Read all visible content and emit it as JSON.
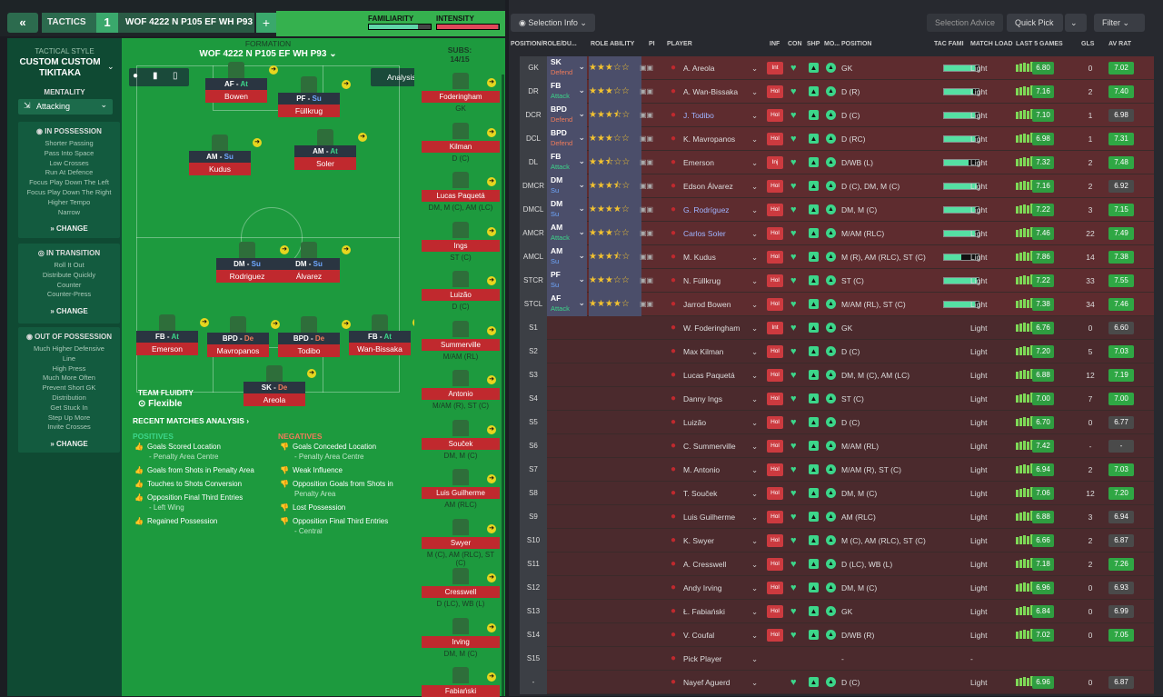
{
  "topbar": {
    "back_icon": "double-chevron-left",
    "tactics_label": "TACTICS",
    "tactic_number": "1",
    "tactic_name": "WOF 4222 N P105 EF WH P93",
    "add_label": "+",
    "familiarity_label": "FAMILIARITY",
    "intensity_label": "INTENSITY",
    "familiarity_level": 0.8,
    "intensity_level": 0.98
  },
  "sidebar": {
    "style_label": "TACTICAL STYLE",
    "style_name1": "CUSTOM CUSTOM",
    "style_name2": "TIKITAKA",
    "mentality_label": "MENTALITY",
    "mentality_value": "Attacking",
    "in_possession": {
      "title": "IN POSSESSION",
      "items": [
        "Shorter Passing",
        "Pass Into Space",
        "Low Crosses",
        "Run At Defence",
        "Focus Play Down The Left",
        "Focus Play Down The Right",
        "Higher Tempo",
        "Narrow"
      ],
      "change": "CHANGE"
    },
    "in_transition": {
      "title": "IN TRANSITION",
      "items": [
        "Roll It Out",
        "Distribute Quickly",
        "Counter",
        "Counter-Press"
      ],
      "change": "CHANGE"
    },
    "out_of_possession": {
      "title": "OUT OF POSSESSION",
      "items": [
        "Much Higher Defensive",
        "Line",
        "High Press",
        "Much More Often",
        "Prevent Short GK",
        "Distribution",
        "Get Stuck In",
        "Step Up More",
        "Invite Crosses"
      ],
      "change": "CHANGE"
    }
  },
  "pitch": {
    "formation_label": "FORMATION",
    "formation_name": "WOF 4222 N P105 EF WH P93",
    "analysis_label": "Analysis",
    "subs_label": "SUBS:",
    "subs_count": "14/15",
    "team_fluidity_label": "TEAM FLUIDITY",
    "team_fluidity_value": "Flexible",
    "players": [
      {
        "role": "AF",
        "duty": "At",
        "name": "Bowen"
      },
      {
        "role": "PF",
        "duty": "Su",
        "name": "Füllkrug"
      },
      {
        "role": "AM",
        "duty": "Su",
        "name": "Kudus"
      },
      {
        "role": "AM",
        "duty": "At",
        "name": "Soler"
      },
      {
        "role": "DM",
        "duty": "Su",
        "name": "Rodriguez"
      },
      {
        "role": "DM",
        "duty": "Su",
        "name": "Álvarez"
      },
      {
        "role": "FB",
        "duty": "At",
        "name": "Emerson"
      },
      {
        "role": "BPD",
        "duty": "De",
        "name": "Mavropanos"
      },
      {
        "role": "BPD",
        "duty": "De",
        "name": "Todibo"
      },
      {
        "role": "FB",
        "duty": "At",
        "name": "Wan-Bissaka"
      },
      {
        "role": "SK",
        "duty": "De",
        "name": "Areola"
      }
    ],
    "subs": [
      {
        "name": "Foderingham",
        "pos": "GK"
      },
      {
        "name": "Kilman",
        "pos": "D (C)"
      },
      {
        "name": "Lucas Paquetá",
        "pos": "DM, M (C), AM (LC)"
      },
      {
        "name": "Ings",
        "pos": "ST (C)"
      },
      {
        "name": "Luizão",
        "pos": "D (C)"
      },
      {
        "name": "Summerville",
        "pos": "M/AM (RL)"
      },
      {
        "name": "Antonio",
        "pos": "M/AM (R), ST (C)"
      },
      {
        "name": "Souček",
        "pos": "DM, M (C)"
      },
      {
        "name": "Luis Guilherme",
        "pos": "AM (RLC)"
      },
      {
        "name": "Swyer",
        "pos": "M (C), AM (RLC), ST (C)"
      },
      {
        "name": "Cresswell",
        "pos": "D (LC), WB (L)"
      },
      {
        "name": "Irving",
        "pos": "DM, M (C)"
      },
      {
        "name": "Fabiański",
        "pos": ""
      }
    ]
  },
  "analysis": {
    "title": "RECENT MATCHES ANALYSIS ›",
    "positives_label": "POSITIVES",
    "negatives_label": "NEGATIVES",
    "positives": [
      {
        "text": "Goals Scored Location",
        "sub": "- Penalty Area Centre"
      },
      {
        "text": "Goals from Shots in Penalty Area",
        "sub": ""
      },
      {
        "text": "Touches to Shots Conversion",
        "sub": ""
      },
      {
        "text": "Opposition Final Third Entries",
        "sub": "- Left Wing"
      },
      {
        "text": "Regained Possession",
        "sub": ""
      }
    ],
    "negatives": [
      {
        "text": "Goals Conceded Location",
        "sub": "- Penalty Area Centre"
      },
      {
        "text": "Weak Influence",
        "sub": ""
      },
      {
        "text": "Opposition Goals from Shots in",
        "sub": "Penalty Area"
      },
      {
        "text": "Lost Possession",
        "sub": ""
      },
      {
        "text": "Opposition Final Third Entries",
        "sub": "- Central"
      }
    ]
  },
  "right": {
    "selection_info": "Selection Info",
    "selection_advice": "Selection Advice",
    "quick_pick": "Quick Pick",
    "filter": "Filter",
    "headers": [
      "POSITION/ROLE/DU...",
      "ROLE ABILITY",
      "PI",
      "PLAYER",
      "INF",
      "CON",
      "SHP",
      "MO...",
      "POSITION",
      "TAC FAMI",
      "MATCH LOAD",
      "LAST 5 GAMES",
      "GLS",
      "AV RAT"
    ],
    "xi": [
      {
        "slot": "GK",
        "role": "SK",
        "duty": "Defend",
        "stars": 3,
        "name": "A. Areola",
        "inf": "Int",
        "pos": "GK",
        "tac": 0.9,
        "load": "Light",
        "rating": "6.80",
        "gls": "0",
        "av": "7.02"
      },
      {
        "slot": "DR",
        "role": "FB",
        "duty": "Attack",
        "stars": 3,
        "name": "A. Wan-Bissaka",
        "inf": "Hol",
        "pos": "D (R)",
        "tac": 0.85,
        "load": "Light",
        "rating": "7.16",
        "gls": "2",
        "av": "7.40"
      },
      {
        "slot": "DCR",
        "role": "BPD",
        "duty": "Defend",
        "stars": 3.5,
        "name": "J. Todibo",
        "inf": "Hol",
        "pos": "D (C)",
        "tac": 0.9,
        "load": "Light",
        "rating": "7.10",
        "gls": "1",
        "av": "6.98"
      },
      {
        "slot": "DCL",
        "role": "BPD",
        "duty": "Defend",
        "stars": 3,
        "name": "K. Mavropanos",
        "inf": "Hol",
        "pos": "D (RC)",
        "tac": 0.9,
        "load": "Light",
        "rating": "6.98",
        "gls": "1",
        "av": "7.31"
      },
      {
        "slot": "DL",
        "role": "FB",
        "duty": "Attack",
        "stars": 2.5,
        "name": "Emerson",
        "inf": "Inj",
        "pos": "D/WB (L)",
        "tac": 0.7,
        "load": "Light",
        "rating": "7.32",
        "gls": "2",
        "av": "7.48"
      },
      {
        "slot": "DMCR",
        "role": "DM",
        "duty": "Su",
        "stars": 3.5,
        "name": "Edson Álvarez",
        "inf": "Hol",
        "pos": "D (C), DM, M (C)",
        "tac": 0.95,
        "load": "Light",
        "rating": "7.16",
        "gls": "2",
        "av": "6.92"
      },
      {
        "slot": "DMCL",
        "role": "DM",
        "duty": "Su",
        "stars": 4,
        "name": "G. Rodríguez",
        "inf": "Hol",
        "pos": "DM, M (C)",
        "tac": 0.9,
        "load": "Light",
        "rating": "7.22",
        "gls": "3",
        "av": "7.15"
      },
      {
        "slot": "AMCR",
        "role": "AM",
        "duty": "Attack",
        "stars": 3,
        "name": "Carlos Soler",
        "inf": "Hol",
        "pos": "M/AM (RLC)",
        "tac": 0.9,
        "load": "Light",
        "rating": "7.46",
        "gls": "22",
        "av": "7.49"
      },
      {
        "slot": "AMCL",
        "role": "AM",
        "duty": "Su",
        "stars": 3.5,
        "name": "M. Kudus",
        "inf": "Hol",
        "pos": "M (R), AM (RLC), ST (C)",
        "tac": 0.5,
        "load": "Light",
        "rating": "7.86",
        "gls": "14",
        "av": "7.38"
      },
      {
        "slot": "STCR",
        "role": "PF",
        "duty": "Su",
        "stars": 3,
        "name": "N. Füllkrug",
        "inf": "Hol",
        "pos": "ST (C)",
        "tac": 0.95,
        "load": "Light",
        "rating": "7.22",
        "gls": "33",
        "av": "7.55"
      },
      {
        "slot": "STCL",
        "role": "AF",
        "duty": "Attack",
        "stars": 4,
        "name": "Jarrod Bowen",
        "inf": "Hol",
        "pos": "M/AM (RL), ST (C)",
        "tac": 0.9,
        "load": "Light",
        "rating": "7.38",
        "gls": "34",
        "av": "7.46"
      }
    ],
    "bench": [
      {
        "slot": "S1",
        "name": "W. Foderingham",
        "inf": "Int",
        "pos": "GK",
        "load": "Light",
        "rating": "6.76",
        "gls": "0",
        "av": "6.60"
      },
      {
        "slot": "S2",
        "name": "Max Kilman",
        "inf": "Hol",
        "pos": "D (C)",
        "load": "Light",
        "rating": "7.20",
        "gls": "5",
        "av": "7.03"
      },
      {
        "slot": "S3",
        "name": "Lucas Paquetá",
        "inf": "Hol",
        "pos": "DM, M (C), AM (LC)",
        "load": "Light",
        "rating": "6.88",
        "gls": "12",
        "av": "7.19"
      },
      {
        "slot": "S4",
        "name": "Danny Ings",
        "inf": "Hol",
        "pos": "ST (C)",
        "load": "Light",
        "rating": "7.00",
        "gls": "7",
        "av": "7.00"
      },
      {
        "slot": "S5",
        "name": "Luizão",
        "inf": "Hol",
        "pos": "D (C)",
        "load": "Light",
        "rating": "6.70",
        "gls": "0",
        "av": "6.77"
      },
      {
        "slot": "S6",
        "name": "C. Summerville",
        "inf": "Hol",
        "pos": "M/AM (RL)",
        "load": "Light",
        "rating": "7.42",
        "gls": "-",
        "av": "-"
      },
      {
        "slot": "S7",
        "name": "M. Antonio",
        "inf": "Hol",
        "pos": "M/AM (R), ST (C)",
        "load": "Light",
        "rating": "6.94",
        "gls": "2",
        "av": "7.03"
      },
      {
        "slot": "S8",
        "name": "T. Souček",
        "inf": "Hol",
        "pos": "DM, M (C)",
        "load": "Light",
        "rating": "7.06",
        "gls": "12",
        "av": "7.20"
      },
      {
        "slot": "S9",
        "name": "Luis Guilherme",
        "inf": "Hol",
        "pos": "AM (RLC)",
        "load": "Light",
        "rating": "6.88",
        "gls": "3",
        "av": "6.94"
      },
      {
        "slot": "S10",
        "name": "K. Swyer",
        "inf": "Hol",
        "pos": "M (C), AM (RLC), ST (C)",
        "load": "Light",
        "rating": "6.66",
        "gls": "2",
        "av": "6.87"
      },
      {
        "slot": "S11",
        "name": "A. Cresswell",
        "inf": "Hol",
        "pos": "D (LC), WB (L)",
        "load": "Light",
        "rating": "7.18",
        "gls": "2",
        "av": "7.26"
      },
      {
        "slot": "S12",
        "name": "Andy Irving",
        "inf": "Hol",
        "pos": "DM, M (C)",
        "load": "Light",
        "rating": "6.96",
        "gls": "0",
        "av": "6.93"
      },
      {
        "slot": "S13",
        "name": "Ł. Fabiański",
        "inf": "Hol",
        "pos": "GK",
        "load": "Light",
        "rating": "6.84",
        "gls": "0",
        "av": "6.99"
      },
      {
        "slot": "S14",
        "name": "V. Coufal",
        "inf": "Hol",
        "pos": "D/WB (R)",
        "load": "Light",
        "rating": "7.02",
        "gls": "0",
        "av": "7.05"
      }
    ],
    "s15": {
      "slot": "S15",
      "name": "Pick Player",
      "pos": "-",
      "load": "-"
    },
    "extra": {
      "slot": "-",
      "name": "Nayef Aguerd",
      "pos": "D (C)",
      "load": "Light",
      "rating": "6.96",
      "gls": "0",
      "av": "6.87"
    }
  }
}
